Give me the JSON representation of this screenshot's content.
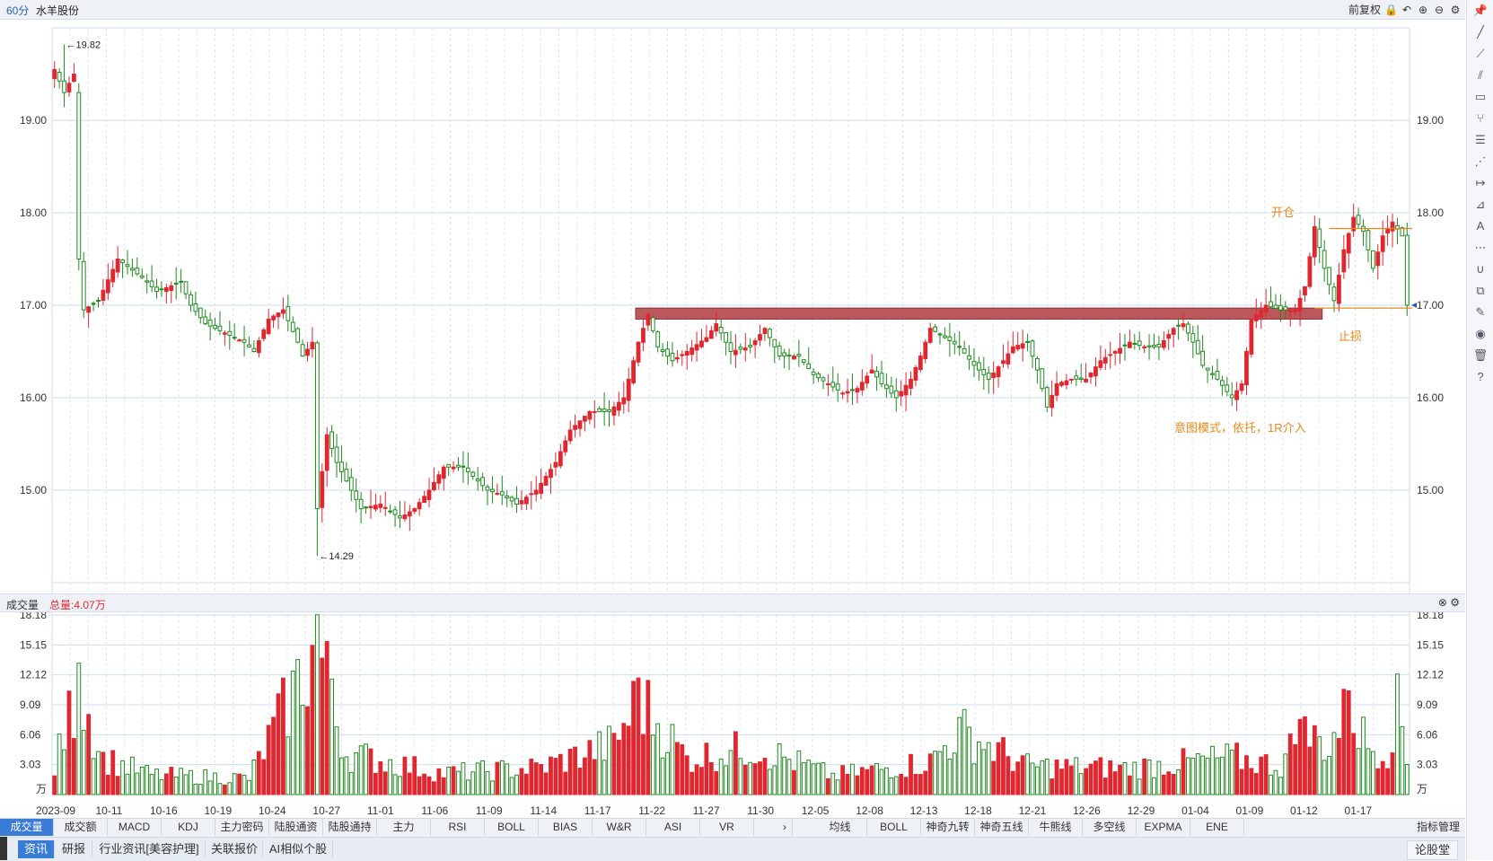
{
  "title": {
    "period": "60分",
    "stock": "水羊股份",
    "adjust": "前复权"
  },
  "title_icons": [
    "lock-icon",
    "undo-icon",
    "zoom-in-icon",
    "zoom-out-icon",
    "gear-icon"
  ],
  "price_axis": {
    "ticks": [
      "19.00",
      "18.00",
      "17.00",
      "16.00",
      "15.00"
    ]
  },
  "volume_header": {
    "label": "成交量",
    "total": "总量:4.07万"
  },
  "volume_axis": {
    "ticks": [
      "18.18",
      "15.15",
      "12.12",
      "9.09",
      "6.06",
      "3.03"
    ],
    "unit": "万"
  },
  "date_axis": [
    "2023-09",
    "10-11",
    "10-16",
    "10-19",
    "10-24",
    "10-27",
    "11-01",
    "11-06",
    "11-09",
    "11-14",
    "11-17",
    "11-22",
    "11-27",
    "11-30",
    "12-05",
    "12-08",
    "12-13",
    "12-18",
    "12-21",
    "12-26",
    "12-29",
    "01-04",
    "01-09",
    "01-12",
    "01-17"
  ],
  "annotations": {
    "high_label": "19.82",
    "low_label": "14.29",
    "open_label": "开仓",
    "stop_label": "止损",
    "note": "意图模式，依托，1R介入"
  },
  "colors": {
    "up": "#e0262f",
    "down": "#1f8a1f",
    "zone": "#b5454a",
    "annotation": "#e8881c",
    "grid": "#dde6f3"
  },
  "chart_data": {
    "type": "candlestick",
    "price_ylim": [
      14.0,
      20.0
    ],
    "volume_ylim": [
      0,
      18.18
    ],
    "zone": {
      "from": 16.85,
      "to": 16.97
    },
    "open_level": 17.83,
    "stop_level": 16.97,
    "high": 19.82,
    "low": 14.29,
    "last_close": 17.0,
    "anchors": [
      [
        0,
        19.55
      ],
      [
        2,
        19.3
      ],
      [
        4,
        19.5
      ],
      [
        5,
        17.5
      ],
      [
        6,
        16.95
      ],
      [
        9,
        17.05
      ],
      [
        13,
        17.5
      ],
      [
        18,
        17.3
      ],
      [
        21,
        17.15
      ],
      [
        26,
        17.25
      ],
      [
        28,
        17.0
      ],
      [
        31,
        16.8
      ],
      [
        35,
        16.7
      ],
      [
        39,
        16.6
      ],
      [
        41,
        16.5
      ],
      [
        44,
        16.85
      ],
      [
        47,
        16.95
      ],
      [
        50,
        16.6
      ],
      [
        51,
        16.45
      ],
      [
        53,
        16.6
      ],
      [
        54,
        14.8
      ],
      [
        56,
        15.6
      ],
      [
        58,
        15.3
      ],
      [
        60,
        15.1
      ],
      [
        63,
        14.8
      ],
      [
        67,
        14.85
      ],
      [
        71,
        14.7
      ],
      [
        74,
        14.8
      ],
      [
        77,
        15.0
      ],
      [
        80,
        15.25
      ],
      [
        84,
        15.25
      ],
      [
        86,
        15.15
      ],
      [
        89,
        15.0
      ],
      [
        92,
        14.95
      ],
      [
        95,
        14.85
      ],
      [
        99,
        15.0
      ],
      [
        103,
        15.3
      ],
      [
        106,
        15.65
      ],
      [
        110,
        15.85
      ],
      [
        114,
        15.85
      ],
      [
        117,
        16.0
      ],
      [
        120,
        16.6
      ],
      [
        122,
        16.9
      ],
      [
        124,
        16.55
      ],
      [
        127,
        16.4
      ],
      [
        130,
        16.5
      ],
      [
        134,
        16.65
      ],
      [
        136,
        16.8
      ],
      [
        139,
        16.5
      ],
      [
        143,
        16.55
      ],
      [
        146,
        16.75
      ],
      [
        149,
        16.45
      ],
      [
        153,
        16.45
      ],
      [
        156,
        16.25
      ],
      [
        159,
        16.15
      ],
      [
        162,
        16.05
      ],
      [
        165,
        16.1
      ],
      [
        168,
        16.3
      ],
      [
        170,
        16.15
      ],
      [
        173,
        16.0
      ],
      [
        176,
        16.2
      ],
      [
        178,
        16.45
      ],
      [
        180,
        16.75
      ],
      [
        183,
        16.65
      ],
      [
        186,
        16.55
      ],
      [
        189,
        16.35
      ],
      [
        192,
        16.2
      ],
      [
        195,
        16.4
      ],
      [
        197,
        16.55
      ],
      [
        200,
        16.6
      ],
      [
        202,
        16.3
      ],
      [
        204,
        15.9
      ],
      [
        206,
        16.15
      ],
      [
        209,
        16.2
      ],
      [
        212,
        16.2
      ],
      [
        215,
        16.4
      ],
      [
        218,
        16.5
      ],
      [
        221,
        16.6
      ],
      [
        224,
        16.55
      ],
      [
        227,
        16.55
      ],
      [
        230,
        16.75
      ],
      [
        232,
        16.8
      ],
      [
        234,
        16.6
      ],
      [
        236,
        16.35
      ],
      [
        239,
        16.2
      ],
      [
        242,
        16.0
      ],
      [
        244,
        16.15
      ],
      [
        246,
        16.85
      ],
      [
        249,
        17.0
      ],
      [
        252,
        16.95
      ],
      [
        255,
        16.95
      ],
      [
        257,
        17.2
      ],
      [
        259,
        17.85
      ],
      [
        261,
        17.4
      ],
      [
        263,
        17.05
      ],
      [
        265,
        17.6
      ],
      [
        267,
        17.95
      ],
      [
        269,
        17.8
      ],
      [
        271,
        17.4
      ],
      [
        273,
        17.75
      ],
      [
        275,
        17.9
      ],
      [
        277,
        17.75
      ],
      [
        278,
        17.0
      ]
    ],
    "volume_anchors": [
      [
        0,
        3.2
      ],
      [
        5,
        13.3
      ],
      [
        10,
        4.4
      ],
      [
        20,
        2.4
      ],
      [
        40,
        2.0
      ],
      [
        54,
        18.2
      ],
      [
        57,
        11.7
      ],
      [
        60,
        5.0
      ],
      [
        80,
        2.6
      ],
      [
        100,
        3.3
      ],
      [
        115,
        6.2
      ],
      [
        120,
        11.8
      ],
      [
        130,
        4.4
      ],
      [
        144,
        5.8
      ],
      [
        160,
        2.3
      ],
      [
        180,
        4.0
      ],
      [
        186,
        7.8
      ],
      [
        200,
        3.5
      ],
      [
        220,
        3.2
      ],
      [
        242,
        4.5
      ],
      [
        252,
        3.5
      ],
      [
        256,
        7.6
      ],
      [
        262,
        6.0
      ],
      [
        266,
        10.5
      ],
      [
        270,
        6.0
      ],
      [
        274,
        5.5
      ],
      [
        276,
        12.2
      ],
      [
        278,
        4.2
      ]
    ]
  },
  "indicator_tabs": [
    "成交量",
    "成交额",
    "MACD",
    "KDJ",
    "主力密码",
    "陆股通资金",
    "陆股通持股",
    "主力",
    "RSI",
    "BOLL",
    "BIAS",
    "W&R",
    "ASI",
    "VR"
  ],
  "overlay_tabs": [
    "均线",
    "BOLL",
    "神奇九转",
    "神奇五线谱",
    "牛熊线",
    "多空线",
    "EXPMA",
    "ENE"
  ],
  "tab_more": "›",
  "indicator_manage": "指标管理",
  "bottom_tabs": [
    "资讯",
    "研报",
    "行业资讯[美容护理]",
    "关联报价",
    "AI相似个股"
  ],
  "forum_button": "论股堂",
  "sidebar_tools": [
    "pin-icon",
    "line-icon",
    "ray-icon",
    "parallel-icon",
    "rect-icon",
    "fork-icon",
    "fib-icon",
    "fan-icon",
    "measure-icon",
    "gann-icon",
    "text-icon",
    "more-icon",
    "magnet-icon",
    "layers-icon",
    "pen-icon",
    "eye-icon",
    "trash-icon",
    "help-icon"
  ]
}
